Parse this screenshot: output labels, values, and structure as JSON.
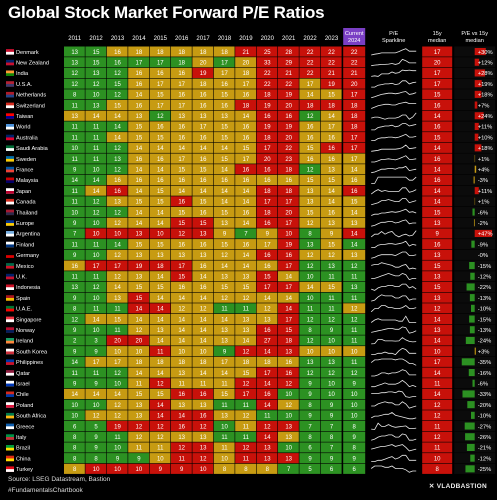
{
  "title": "Global Stock Market Forward P/E Ratios",
  "footer": {
    "source": "Source: LSEG Datastream, Bastion",
    "hashtag": "#FundamentalsChartbook",
    "brand": "✕ VLADBASTION"
  },
  "colors": {
    "red": "#c8110a",
    "yellow": "#c79b12",
    "green": "#2c9122",
    "current": "#7a3fc4",
    "background": "#000000"
  },
  "chart_data": {
    "type": "heatmap",
    "title": "Global Stock Market Forward P/E Ratios",
    "columns": [
      "2011",
      "2012",
      "2013",
      "2014",
      "2015",
      "2016",
      "2017",
      "2018",
      "2019",
      "2020",
      "2021",
      "2022",
      "2023",
      "Current 2024",
      "P/E Sparkline",
      "15y median",
      "P/E vs 15y median"
    ],
    "years": [
      "2011",
      "2012",
      "2013",
      "2014",
      "2015",
      "2016",
      "2017",
      "2018",
      "2019",
      "2020",
      "2021",
      "2022",
      "2023"
    ],
    "current_label": "Current 2024",
    "sparkline_label": "P/E Sparkline",
    "median_label": "15y median",
    "delta_label": "P/E vs 15y median",
    "rows": [
      {
        "country": "Denmark",
        "flag": "DK",
        "values": [
          13,
          15,
          16,
          18,
          18,
          18,
          18,
          18,
          21,
          25,
          28,
          22,
          22
        ],
        "current": 22,
        "median": 17,
        "delta": "+30%"
      },
      {
        "country": "New Zealand",
        "flag": "NZ",
        "values": [
          13,
          15,
          16,
          17,
          17,
          18,
          20,
          17,
          20,
          33,
          29,
          22,
          22
        ],
        "current": 22,
        "median": 20,
        "delta": "+12%"
      },
      {
        "country": "India",
        "flag": "IN",
        "values": [
          12,
          13,
          12,
          16,
          16,
          16,
          19,
          17,
          18,
          22,
          21,
          22,
          21
        ],
        "current": 21,
        "median": 17,
        "delta": "+28%"
      },
      {
        "country": "U.S.A.",
        "flag": "US",
        "values": [
          12,
          12,
          15,
          16,
          17,
          17,
          18,
          16,
          17,
          22,
          22,
          17,
          19
        ],
        "current": 20,
        "median": 17,
        "delta": "+19%"
      },
      {
        "country": "Netherlands",
        "flag": "NL",
        "values": [
          8,
          10,
          12,
          14,
          15,
          16,
          16,
          15,
          16,
          18,
          19,
          14,
          15
        ],
        "current": 17,
        "median": 15,
        "delta": "+18%"
      },
      {
        "country": "Switzerland",
        "flag": "CH",
        "values": [
          11,
          13,
          15,
          16,
          17,
          17,
          16,
          16,
          18,
          19,
          20,
          18,
          18
        ],
        "current": 18,
        "median": 16,
        "delta": "+7%"
      },
      {
        "country": "Taiwan",
        "flag": "TW",
        "values": [
          13,
          14,
          14,
          13,
          12,
          13,
          13,
          13,
          14,
          16,
          16,
          12,
          14
        ],
        "current": 18,
        "median": 14,
        "delta": "+24%"
      },
      {
        "country": "World",
        "flag": "UN",
        "values": [
          11,
          11,
          14,
          15,
          16,
          16,
          17,
          15,
          16,
          19,
          19,
          16,
          17
        ],
        "current": 18,
        "median": 16,
        "delta": "+11%"
      },
      {
        "country": "Australia",
        "flag": "AU",
        "values": [
          11,
          11,
          14,
          15,
          15,
          16,
          16,
          15,
          16,
          18,
          20,
          16,
          16
        ],
        "current": 17,
        "median": 15,
        "delta": "+10%"
      },
      {
        "country": "Saudi Arabia",
        "flag": "SA",
        "values": [
          10,
          11,
          12,
          14,
          14,
          14,
          14,
          14,
          15,
          17,
          22,
          15,
          16
        ],
        "current": 17,
        "median": 14,
        "delta": "+18%"
      },
      {
        "country": "Sweden",
        "flag": "SE",
        "values": [
          11,
          11,
          13,
          16,
          16,
          17,
          16,
          15,
          17,
          20,
          23,
          16,
          16
        ],
        "current": 17,
        "median": 16,
        "delta": "+1%"
      },
      {
        "country": "France",
        "flag": "FR",
        "values": [
          9,
          10,
          12,
          14,
          14,
          15,
          15,
          14,
          16,
          16,
          18,
          12,
          13
        ],
        "current": 14,
        "median": 14,
        "delta": "+4%"
      },
      {
        "country": "Malaysia",
        "flag": "MY",
        "values": [
          14,
          14,
          16,
          16,
          16,
          16,
          16,
          16,
          16,
          16,
          16,
          15,
          15
        ],
        "current": 16,
        "median": 16,
        "delta": "-3%"
      },
      {
        "country": "Japan",
        "flag": "JP",
        "values": [
          11,
          14,
          16,
          14,
          15,
          14,
          14,
          14,
          14,
          18,
          18,
          13,
          14
        ],
        "current": 16,
        "median": 14,
        "delta": "+11%"
      },
      {
        "country": "Canada",
        "flag": "CA",
        "values": [
          11,
          12,
          13,
          15,
          15,
          16,
          15,
          14,
          14,
          17,
          17,
          13,
          14
        ],
        "current": 15,
        "median": 14,
        "delta": "+1%"
      },
      {
        "country": "Thailand",
        "flag": "TH",
        "values": [
          10,
          12,
          12,
          14,
          14,
          15,
          16,
          15,
          16,
          18,
          20,
          15,
          16
        ],
        "current": 14,
        "median": 15,
        "delta": "-6%"
      },
      {
        "country": "Europe",
        "flag": "EU",
        "values": [
          9,
          10,
          12,
          14,
          14,
          15,
          15,
          13,
          14,
          16,
          17,
          12,
          13
        ],
        "current": 13,
        "median": 13,
        "delta": "-2%"
      },
      {
        "country": "Argentina",
        "flag": "AR",
        "values": [
          7,
          10,
          10,
          13,
          10,
          12,
          13,
          9,
          7,
          9,
          10,
          8,
          9
        ],
        "current": 14,
        "median": 9,
        "delta": "+47%"
      },
      {
        "country": "Finland",
        "flag": "FI",
        "values": [
          11,
          11,
          14,
          15,
          15,
          16,
          16,
          15,
          16,
          17,
          19,
          13,
          15
        ],
        "current": 14,
        "median": 16,
        "delta": "-9%"
      },
      {
        "country": "Germany",
        "flag": "DE",
        "values": [
          9,
          10,
          12,
          13,
          13,
          13,
          13,
          12,
          14,
          16,
          16,
          12,
          12
        ],
        "current": 13,
        "median": 13,
        "delta": "-0%"
      },
      {
        "country": "Mexico",
        "flag": "MX",
        "values": [
          16,
          17,
          17,
          19,
          18,
          17,
          16,
          14,
          14,
          16,
          17,
          12,
          13
        ],
        "current": 12,
        "median": 15,
        "delta": "-15%"
      },
      {
        "country": "U.K.",
        "flag": "GB",
        "values": [
          11,
          11,
          12,
          13,
          14,
          15,
          14,
          13,
          13,
          15,
          14,
          10,
          11
        ],
        "current": 11,
        "median": 13,
        "delta": "-12%"
      },
      {
        "country": "Indonesia",
        "flag": "ID",
        "values": [
          13,
          12,
          14,
          15,
          15,
          16,
          16,
          15,
          15,
          17,
          17,
          14,
          15
        ],
        "current": 13,
        "median": 15,
        "delta": "-22%"
      },
      {
        "country": "Spain",
        "flag": "ES",
        "values": [
          9,
          10,
          13,
          15,
          14,
          14,
          14,
          12,
          12,
          14,
          14,
          10,
          11
        ],
        "current": 11,
        "median": 13,
        "delta": "-13%"
      },
      {
        "country": "U.A.E.",
        "flag": "AE",
        "values": [
          8,
          11,
          11,
          14,
          14,
          12,
          12,
          11,
          11,
          12,
          14,
          11,
          11
        ],
        "current": 12,
        "median": 12,
        "delta": "-10%"
      },
      {
        "country": "Singapore",
        "flag": "SG",
        "values": [
          12,
          14,
          15,
          14,
          14,
          14,
          14,
          14,
          13,
          13,
          17,
          12,
          12
        ],
        "current": 12,
        "median": 14,
        "delta": "-15%"
      },
      {
        "country": "Norway",
        "flag": "NO",
        "values": [
          9,
          10,
          11,
          12,
          13,
          14,
          14,
          13,
          13,
          16,
          15,
          8,
          9
        ],
        "current": 11,
        "median": 13,
        "delta": "-13%"
      },
      {
        "country": "Ireland",
        "flag": "IE",
        "values": [
          2,
          3,
          20,
          20,
          14,
          14,
          14,
          13,
          14,
          27,
          18,
          12,
          10
        ],
        "current": 11,
        "median": 14,
        "delta": "-24%"
      },
      {
        "country": "South Korea",
        "flag": "KR",
        "values": [
          9,
          9,
          10,
          10,
          11,
          10,
          10,
          9,
          12,
          14,
          13,
          10,
          10
        ],
        "current": 10,
        "median": 10,
        "delta": "+3%"
      },
      {
        "country": "Philippines",
        "flag": "PH",
        "values": [
          14,
          17,
          17,
          18,
          18,
          18,
          18,
          17,
          18,
          18,
          16,
          13,
          13
        ],
        "current": 11,
        "median": 17,
        "delta": "-35%"
      },
      {
        "country": "Qatar",
        "flag": "QA",
        "values": [
          11,
          11,
          12,
          14,
          14,
          13,
          14,
          14,
          15,
          17,
          16,
          12,
          12
        ],
        "current": 12,
        "median": 14,
        "delta": "-16%"
      },
      {
        "country": "Israel",
        "flag": "IL",
        "values": [
          9,
          9,
          10,
          11,
          12,
          11,
          11,
          11,
          12,
          14,
          12,
          9,
          10
        ],
        "current": 9,
        "median": 11,
        "delta": "-6%"
      },
      {
        "country": "Chile",
        "flag": "CL",
        "values": [
          14,
          14,
          14,
          15,
          15,
          16,
          16,
          15,
          17,
          16,
          10,
          9,
          10
        ],
        "current": 10,
        "median": 14,
        "delta": "-33%"
      },
      {
        "country": "Poland",
        "flag": "PL",
        "values": [
          10,
          10,
          12,
          13,
          14,
          13,
          13,
          11,
          11,
          14,
          12,
          8,
          9
        ],
        "current": 10,
        "median": 12,
        "delta": "-20%"
      },
      {
        "country": "South Africa",
        "flag": "ZA",
        "values": [
          10,
          12,
          12,
          13,
          14,
          14,
          16,
          13,
          12,
          11,
          10,
          9,
          9
        ],
        "current": 10,
        "median": 12,
        "delta": "-10%"
      },
      {
        "country": "Greece",
        "flag": "GR",
        "values": [
          6,
          5,
          19,
          12,
          12,
          16,
          12,
          10,
          11,
          12,
          13,
          7,
          7
        ],
        "current": 8,
        "median": 11,
        "delta": "-27%"
      },
      {
        "country": "Italy",
        "flag": "IT",
        "values": [
          8,
          9,
          11,
          12,
          12,
          13,
          13,
          11,
          11,
          14,
          13,
          8,
          8
        ],
        "current": 9,
        "median": 12,
        "delta": "-26%"
      },
      {
        "country": "Brazil",
        "flag": "BR",
        "values": [
          8,
          9,
          10,
          11,
          11,
          12,
          13,
          11,
          12,
          13,
          10,
          6,
          7
        ],
        "current": 8,
        "median": 11,
        "delta": "-21%"
      },
      {
        "country": "China",
        "flag": "CN",
        "values": [
          8,
          8,
          9,
          9,
          10,
          11,
          12,
          10,
          11,
          13,
          13,
          9,
          9
        ],
        "current": 9,
        "median": 10,
        "delta": "-12%"
      },
      {
        "country": "Turkey",
        "flag": "TR",
        "values": [
          8,
          10,
          10,
          10,
          9,
          9,
          10,
          8,
          8,
          8,
          7,
          5,
          6
        ],
        "current": 6,
        "median": 8,
        "delta": "-25%"
      }
    ]
  }
}
